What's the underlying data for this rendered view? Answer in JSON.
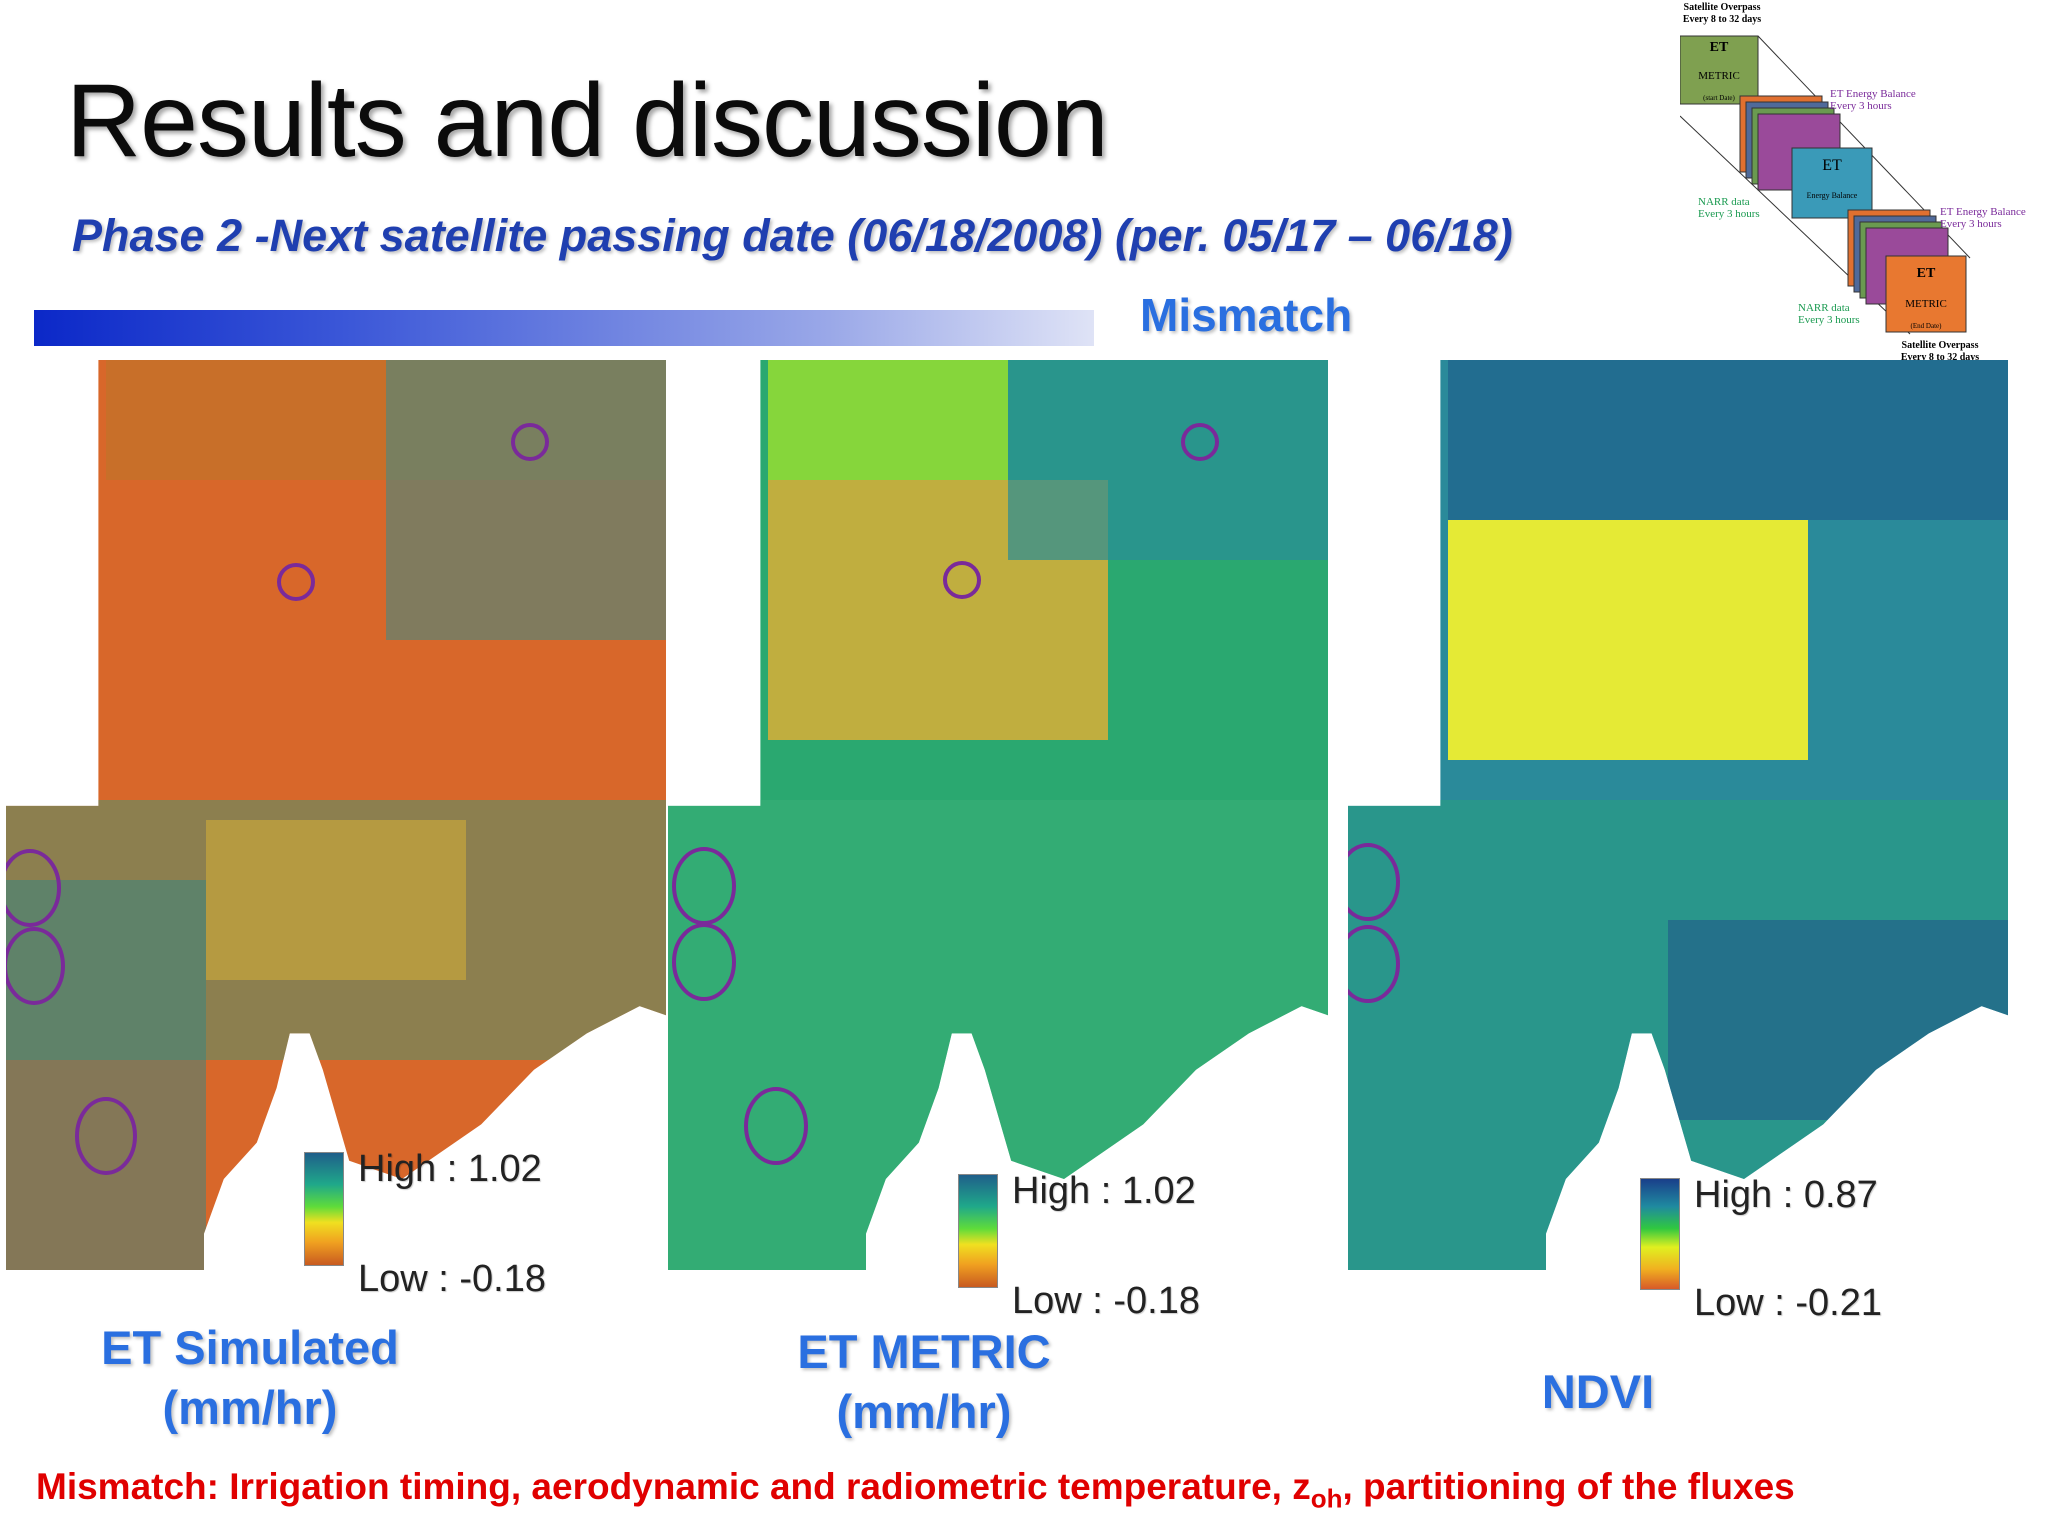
{
  "slide": {
    "title": "Results and discussion",
    "subtitle": "Phase 2 -Next satellite passing date (06/18/2008) (per. 05/17 – 06/18)",
    "mismatch_header": "Mismatch"
  },
  "panels": [
    {
      "label_line1": "ET Simulated",
      "label_line2": "(mm/hr)",
      "legend_high": "High : 1.02",
      "legend_low": "Low : -0.18"
    },
    {
      "label_line1": "ET METRIC",
      "label_line2": "(mm/hr)",
      "legend_high": "High : 1.02",
      "legend_low": "Low : -0.18"
    },
    {
      "label_line1": "NDVI",
      "label_line2": "",
      "legend_high": "High : 0.87",
      "legend_low": "Low : -0.21"
    }
  ],
  "footnote": {
    "text_before": "Mismatch: Irrigation timing, aerodynamic and radiometric temperature, z",
    "subscript": "oh",
    "text_after": ", partitioning of the fluxes"
  },
  "diagram": {
    "top_caption_1": "Satellite Overpass",
    "top_caption_2": "Every 8 to 32 days",
    "box1_line1": "ET",
    "box1_line2": "METRIC",
    "box1_line3": "(start Date)",
    "eb_label_1": "ET Energy Balance",
    "eb_label_2": "Every 3 hours",
    "mid_box_line1": "ET",
    "mid_box_line2": "Energy Balance",
    "narr_1": "NARR data",
    "narr_2": "Every 3 hours",
    "eb2_label_1": "ET Energy Balance",
    "eb2_label_2": "Every 3 hours",
    "box3_line1": "ET",
    "box3_line2": "METRIC",
    "box3_line3": "(End Date)",
    "narr2_1": "NARR data",
    "narr2_2": "Every 3 hours",
    "bottom_caption_1": "Satellite Overpass",
    "bottom_caption_2": "Every 8 to 32 days"
  },
  "colors": {
    "title": "#0b0b0b",
    "subtitle": "#1f3fb0",
    "label_blue": "#2a6fe0",
    "footnote_red": "#e00000",
    "mismatch_circle": "#7a2a9a"
  }
}
